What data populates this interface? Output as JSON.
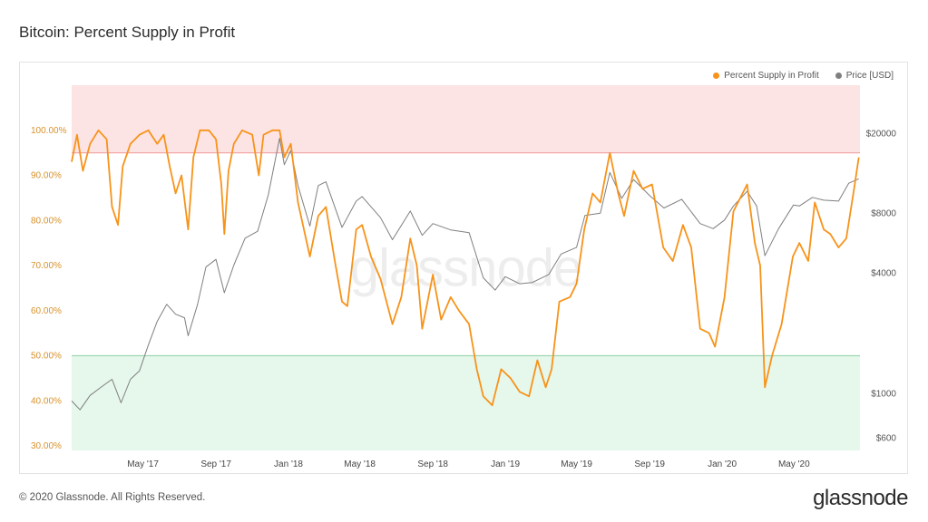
{
  "header": {
    "title": "Bitcoin: Percent Supply in Profit"
  },
  "footer": {
    "copyright": "© 2020 Glassnode. All Rights Reserved.",
    "brand": "glassnode"
  },
  "watermark": "glassnode",
  "colors": {
    "profit": "#f7931a",
    "price": "#7f7f7f",
    "upper_band": "#fde4e4",
    "upper_line": "#f2a7a7",
    "lower_band": "#e6f7ec",
    "lower_line": "#9ed7b0",
    "axis_left": "#d9912a"
  },
  "chart_data": {
    "type": "line",
    "title": "Bitcoin: Percent Supply in Profit",
    "legend": {
      "placement": "top-right",
      "entries": [
        "Percent Supply in Profit",
        "Price [USD]"
      ]
    },
    "x_range": [
      "2017-01-01",
      "2020-08-20"
    ],
    "x_ticks": [
      {
        "date": "2017-05-01",
        "label": "May '17"
      },
      {
        "date": "2017-09-01",
        "label": "Sep '17"
      },
      {
        "date": "2018-01-01",
        "label": "Jan '18"
      },
      {
        "date": "2018-05-01",
        "label": "May '18"
      },
      {
        "date": "2018-09-01",
        "label": "Sep '18"
      },
      {
        "date": "2019-01-01",
        "label": "Jan '19"
      },
      {
        "date": "2019-05-01",
        "label": "May '19"
      },
      {
        "date": "2019-09-01",
        "label": "Sep '19"
      },
      {
        "date": "2020-01-01",
        "label": "Jan '20"
      },
      {
        "date": "2020-05-01",
        "label": "May '20"
      }
    ],
    "y_left": {
      "label": "",
      "range": [
        0.29,
        1.1
      ],
      "ticks": [
        {
          "v": 0.3,
          "label": "30.00%"
        },
        {
          "v": 0.4,
          "label": "40.00%"
        },
        {
          "v": 0.5,
          "label": "50.00%"
        },
        {
          "v": 0.6,
          "label": "60.00%"
        },
        {
          "v": 0.7,
          "label": "70.00%"
        },
        {
          "v": 0.8,
          "label": "80.00%"
        },
        {
          "v": 0.9,
          "label": "90.00%"
        },
        {
          "v": 1.0,
          "label": "100.00%"
        }
      ]
    },
    "y_right": {
      "label": "",
      "scale": "log",
      "range": [
        520,
        35000
      ],
      "ticks": [
        {
          "v": 600,
          "label": "$600"
        },
        {
          "v": 1000,
          "label": "$1000"
        },
        {
          "v": 4000,
          "label": "$4000"
        },
        {
          "v": 8000,
          "label": "$8000"
        },
        {
          "v": 20000,
          "label": "$20000"
        }
      ]
    },
    "bands": [
      {
        "name": "",
        "from": 0.95,
        "to": 1.1
      },
      {
        "name": "",
        "from": 0.29,
        "to": 0.5
      }
    ],
    "series": [
      {
        "name": "Percent Supply in Profit",
        "axis": "left",
        "points": [
          [
            "2017-01-01",
            0.93
          ],
          [
            "2017-01-10",
            0.99
          ],
          [
            "2017-01-20",
            0.91
          ],
          [
            "2017-02-01",
            0.97
          ],
          [
            "2017-02-15",
            1.0
          ],
          [
            "2017-03-01",
            0.98
          ],
          [
            "2017-03-10",
            0.83
          ],
          [
            "2017-03-20",
            0.79
          ],
          [
            "2017-03-28",
            0.92
          ],
          [
            "2017-04-10",
            0.97
          ],
          [
            "2017-04-25",
            0.99
          ],
          [
            "2017-05-10",
            1.0
          ],
          [
            "2017-05-25",
            0.97
          ],
          [
            "2017-06-05",
            0.99
          ],
          [
            "2017-06-15",
            0.92
          ],
          [
            "2017-06-25",
            0.86
          ],
          [
            "2017-07-05",
            0.9
          ],
          [
            "2017-07-16",
            0.78
          ],
          [
            "2017-07-25",
            0.94
          ],
          [
            "2017-08-05",
            1.0
          ],
          [
            "2017-08-20",
            1.0
          ],
          [
            "2017-09-01",
            0.98
          ],
          [
            "2017-09-10",
            0.88
          ],
          [
            "2017-09-15",
            0.77
          ],
          [
            "2017-09-22",
            0.91
          ],
          [
            "2017-10-01",
            0.97
          ],
          [
            "2017-10-15",
            1.0
          ],
          [
            "2017-11-01",
            0.99
          ],
          [
            "2017-11-12",
            0.9
          ],
          [
            "2017-11-20",
            0.99
          ],
          [
            "2017-12-05",
            1.0
          ],
          [
            "2017-12-17",
            1.0
          ],
          [
            "2017-12-25",
            0.94
          ],
          [
            "2018-01-05",
            0.97
          ],
          [
            "2018-01-17",
            0.84
          ],
          [
            "2018-02-06",
            0.72
          ],
          [
            "2018-02-20",
            0.81
          ],
          [
            "2018-03-05",
            0.83
          ],
          [
            "2018-03-20",
            0.71
          ],
          [
            "2018-04-01",
            0.62
          ],
          [
            "2018-04-10",
            0.61
          ],
          [
            "2018-04-25",
            0.78
          ],
          [
            "2018-05-05",
            0.79
          ],
          [
            "2018-05-20",
            0.72
          ],
          [
            "2018-06-05",
            0.67
          ],
          [
            "2018-06-25",
            0.57
          ],
          [
            "2018-07-10",
            0.63
          ],
          [
            "2018-07-25",
            0.76
          ],
          [
            "2018-08-05",
            0.7
          ],
          [
            "2018-08-14",
            0.56
          ],
          [
            "2018-09-01",
            0.68
          ],
          [
            "2018-09-15",
            0.58
          ],
          [
            "2018-10-01",
            0.63
          ],
          [
            "2018-10-15",
            0.6
          ],
          [
            "2018-11-01",
            0.57
          ],
          [
            "2018-11-14",
            0.47
          ],
          [
            "2018-11-25",
            0.41
          ],
          [
            "2018-12-10",
            0.39
          ],
          [
            "2018-12-25",
            0.47
          ],
          [
            "2019-01-10",
            0.45
          ],
          [
            "2019-01-25",
            0.42
          ],
          [
            "2019-02-10",
            0.41
          ],
          [
            "2019-02-24",
            0.49
          ],
          [
            "2019-03-10",
            0.43
          ],
          [
            "2019-03-20",
            0.47
          ],
          [
            "2019-04-02",
            0.62
          ],
          [
            "2019-04-20",
            0.63
          ],
          [
            "2019-05-01",
            0.66
          ],
          [
            "2019-05-14",
            0.78
          ],
          [
            "2019-05-28",
            0.86
          ],
          [
            "2019-06-10",
            0.84
          ],
          [
            "2019-06-26",
            0.95
          ],
          [
            "2019-07-10",
            0.86
          ],
          [
            "2019-07-20",
            0.81
          ],
          [
            "2019-08-05",
            0.91
          ],
          [
            "2019-08-20",
            0.87
          ],
          [
            "2019-09-05",
            0.88
          ],
          [
            "2019-09-24",
            0.74
          ],
          [
            "2019-10-10",
            0.71
          ],
          [
            "2019-10-27",
            0.79
          ],
          [
            "2019-11-10",
            0.74
          ],
          [
            "2019-11-25",
            0.56
          ],
          [
            "2019-12-10",
            0.55
          ],
          [
            "2019-12-20",
            0.52
          ],
          [
            "2020-01-05",
            0.63
          ],
          [
            "2020-01-20",
            0.82
          ],
          [
            "2020-02-12",
            0.88
          ],
          [
            "2020-02-25",
            0.75
          ],
          [
            "2020-03-05",
            0.7
          ],
          [
            "2020-03-13",
            0.43
          ],
          [
            "2020-03-25",
            0.5
          ],
          [
            "2020-04-10",
            0.57
          ],
          [
            "2020-04-29",
            0.72
          ],
          [
            "2020-05-10",
            0.75
          ],
          [
            "2020-05-25",
            0.71
          ],
          [
            "2020-06-05",
            0.84
          ],
          [
            "2020-06-20",
            0.78
          ],
          [
            "2020-07-01",
            0.77
          ],
          [
            "2020-07-15",
            0.74
          ],
          [
            "2020-07-28",
            0.76
          ],
          [
            "2020-08-10",
            0.87
          ],
          [
            "2020-08-18",
            0.94
          ]
        ]
      },
      {
        "name": "Price [USD]",
        "axis": "right",
        "points": [
          [
            "2017-01-01",
            920
          ],
          [
            "2017-01-15",
            830
          ],
          [
            "2017-02-01",
            980
          ],
          [
            "2017-02-20",
            1080
          ],
          [
            "2017-03-10",
            1180
          ],
          [
            "2017-03-25",
            900
          ],
          [
            "2017-04-10",
            1180
          ],
          [
            "2017-04-25",
            1300
          ],
          [
            "2017-05-10",
            1750
          ],
          [
            "2017-05-25",
            2300
          ],
          [
            "2017-06-10",
            2800
          ],
          [
            "2017-06-25",
            2500
          ],
          [
            "2017-07-10",
            2400
          ],
          [
            "2017-07-16",
            1950
          ],
          [
            "2017-08-01",
            2800
          ],
          [
            "2017-08-15",
            4300
          ],
          [
            "2017-09-01",
            4700
          ],
          [
            "2017-09-15",
            3200
          ],
          [
            "2017-10-01",
            4400
          ],
          [
            "2017-10-20",
            6000
          ],
          [
            "2017-11-10",
            6500
          ],
          [
            "2017-11-28",
            9900
          ],
          [
            "2017-12-17",
            19000
          ],
          [
            "2017-12-25",
            14000
          ],
          [
            "2018-01-05",
            16500
          ],
          [
            "2018-01-17",
            11000
          ],
          [
            "2018-02-06",
            6900
          ],
          [
            "2018-02-20",
            11000
          ],
          [
            "2018-03-05",
            11500
          ],
          [
            "2018-04-01",
            6800
          ],
          [
            "2018-04-25",
            9200
          ],
          [
            "2018-05-05",
            9700
          ],
          [
            "2018-06-05",
            7600
          ],
          [
            "2018-06-25",
            5900
          ],
          [
            "2018-07-25",
            8200
          ],
          [
            "2018-08-14",
            6200
          ],
          [
            "2018-09-01",
            7100
          ],
          [
            "2018-10-01",
            6600
          ],
          [
            "2018-11-01",
            6400
          ],
          [
            "2018-11-25",
            3800
          ],
          [
            "2018-12-15",
            3300
          ],
          [
            "2019-01-01",
            3850
          ],
          [
            "2019-01-25",
            3550
          ],
          [
            "2019-02-15",
            3600
          ],
          [
            "2019-03-15",
            3950
          ],
          [
            "2019-04-05",
            5000
          ],
          [
            "2019-05-01",
            5400
          ],
          [
            "2019-05-15",
            7800
          ],
          [
            "2019-06-10",
            8000
          ],
          [
            "2019-06-26",
            12800
          ],
          [
            "2019-07-16",
            9500
          ],
          [
            "2019-08-05",
            11800
          ],
          [
            "2019-09-01",
            9800
          ],
          [
            "2019-09-25",
            8500
          ],
          [
            "2019-10-25",
            9400
          ],
          [
            "2019-11-25",
            7100
          ],
          [
            "2019-12-17",
            6700
          ],
          [
            "2020-01-05",
            7400
          ],
          [
            "2020-01-20",
            8700
          ],
          [
            "2020-02-12",
            10300
          ],
          [
            "2020-02-28",
            8700
          ],
          [
            "2020-03-13",
            4900
          ],
          [
            "2020-04-05",
            6700
          ],
          [
            "2020-04-30",
            8800
          ],
          [
            "2020-05-10",
            8700
          ],
          [
            "2020-06-01",
            9600
          ],
          [
            "2020-06-20",
            9300
          ],
          [
            "2020-07-15",
            9200
          ],
          [
            "2020-08-01",
            11300
          ],
          [
            "2020-08-18",
            11900
          ]
        ]
      }
    ]
  }
}
